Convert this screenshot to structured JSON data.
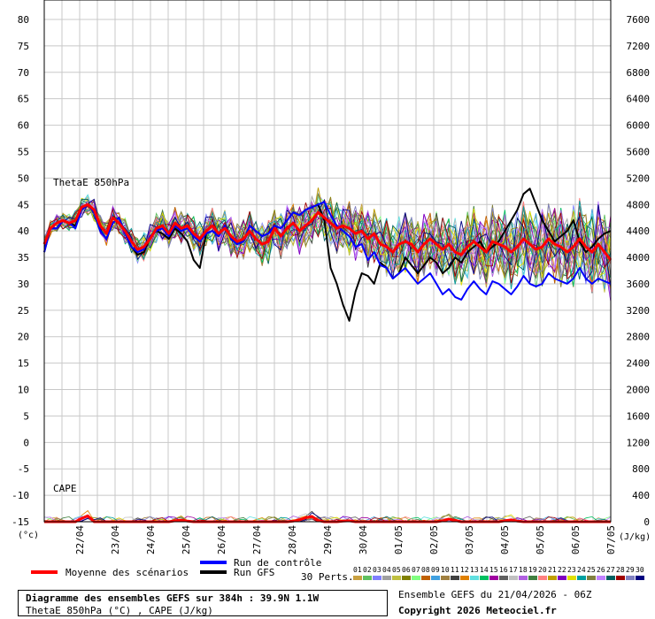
{
  "chart_data": {
    "type": "line",
    "title": "Diagramme des ensembles GEFS sur 384h : 39.9N 1.1W",
    "subtitle": "ThetaE 850hPa (°C) , CAPE (J/kg)",
    "left_axis": {
      "unit": "(°c)",
      "ticks": [
        "80",
        "75",
        "70",
        "65",
        "60",
        "55",
        "50",
        "45",
        "40",
        "35",
        "30",
        "25",
        "20",
        "15",
        "10",
        "5",
        "0",
        "-5",
        "-10",
        "-15"
      ],
      "ylim": [
        -15,
        80
      ]
    },
    "right_axis": {
      "unit": "(J/kg)",
      "ticks": [
        "7600",
        "7200",
        "6800",
        "6400",
        "6000",
        "5600",
        "5200",
        "4800",
        "4400",
        "4000",
        "3600",
        "3200",
        "2800",
        "2400",
        "2000",
        "1600",
        "1200",
        "800",
        "400",
        "0"
      ],
      "ylim": [
        0,
        7600
      ]
    },
    "x_ticks": [
      "22/04",
      "23/04",
      "24/04",
      "25/04",
      "26/04",
      "27/04",
      "28/04",
      "29/04",
      "30/04",
      "01/05",
      "02/05",
      "03/05",
      "04/05",
      "05/05",
      "06/05",
      "07/05"
    ],
    "panel_labels": {
      "thetae": "ThetaE 850hPa",
      "cape": "CAPE"
    },
    "thetae_mean": [
      37.5,
      40.5,
      41.5,
      42,
      41.5,
      42,
      44.5,
      45,
      44,
      41,
      39.5,
      42.5,
      41.5,
      40,
      38,
      36.5,
      37,
      38.5,
      40.5,
      41,
      39.5,
      41.5,
      40.5,
      41,
      39.5,
      38.5,
      40,
      41,
      39.5,
      40.5,
      39,
      38,
      38.5,
      40,
      38.5,
      37.5,
      38,
      40.5,
      39,
      40.5,
      41.5,
      40,
      41,
      42,
      43.5,
      42.5,
      41.5,
      40.5,
      41,
      40.5,
      39.5,
      40,
      38.5,
      39.5,
      37.5,
      37,
      36,
      37.5,
      38,
      37.5,
      36,
      37.5,
      38.5,
      37.5,
      36.5,
      37.5,
      36,
      35.5,
      37,
      38,
      37,
      36,
      38,
      37.5,
      37,
      36,
      37,
      38.5,
      37.5,
      36.5,
      37,
      38.5,
      37.5,
      37,
      36,
      37,
      38.5,
      37,
      36,
      37.5,
      36,
      34.5
    ],
    "thetae_control": [
      36,
      40.5,
      40.5,
      42,
      41.5,
      40.5,
      44,
      45,
      43.5,
      40,
      38.5,
      41.5,
      42.5,
      39.5,
      37,
      36,
      36.5,
      39,
      40,
      40.5,
      39,
      41,
      40,
      40.5,
      39,
      38,
      39.5,
      40,
      39,
      41,
      38.5,
      37.5,
      38,
      41,
      40,
      39,
      39.5,
      41,
      40.5,
      42,
      43.5,
      43,
      44,
      44.5,
      45,
      45.5,
      43,
      41,
      40,
      39,
      37,
      37.5,
      34.5,
      36,
      33.5,
      33,
      31,
      32,
      33,
      31.5,
      30,
      31,
      32,
      30,
      28,
      29,
      27.5,
      27,
      29,
      30.5,
      29,
      28,
      30.5,
      30,
      29,
      28,
      29.5,
      31.5,
      30,
      29.5,
      30,
      32,
      31,
      30.5,
      30,
      31,
      33,
      31,
      30,
      31,
      30.5,
      30
    ],
    "thetae_gfs": [
      36,
      40.5,
      40.5,
      42,
      41.5,
      41,
      44,
      45,
      43.5,
      40,
      38.5,
      41.5,
      42.5,
      39.5,
      37,
      35.5,
      36,
      39,
      40,
      39.5,
      38.5,
      40.5,
      39.5,
      38,
      34.5,
      33,
      39.5,
      40,
      39,
      41,
      38.5,
      37.5,
      38,
      41,
      40,
      39,
      39.5,
      41,
      40.5,
      42,
      43.5,
      43,
      44,
      44.5,
      45,
      42,
      33,
      30,
      26,
      23,
      28.5,
      32,
      31.5,
      30,
      34,
      33,
      31,
      32,
      35,
      33.5,
      32,
      33.5,
      35,
      34,
      32,
      33,
      35,
      34,
      36,
      37,
      38,
      36,
      37,
      38,
      40,
      42,
      44,
      47,
      48,
      45,
      42,
      40,
      38,
      39,
      40,
      42,
      38,
      36,
      37,
      38.5,
      39.5,
      40
    ],
    "cape_mean": [
      0,
      0,
      0,
      0,
      0,
      0,
      50,
      90,
      0,
      0,
      0,
      0,
      0,
      0,
      0,
      0,
      0,
      0,
      0,
      0,
      0,
      15,
      25,
      10,
      0,
      0,
      0,
      0,
      0,
      0,
      0,
      0,
      0,
      0,
      0,
      0,
      0,
      0,
      0,
      0,
      10,
      30,
      60,
      80,
      20,
      0,
      0,
      0,
      10,
      15,
      0,
      0,
      0,
      0,
      0,
      0,
      0,
      0,
      0,
      0,
      0,
      0,
      0,
      0,
      15,
      40,
      20,
      0,
      0,
      0,
      0,
      0,
      0,
      0,
      15,
      30,
      10,
      0,
      0,
      0,
      0,
      0,
      0,
      0,
      0,
      0,
      0,
      0,
      0,
      0,
      0,
      0
    ],
    "series_count_label": "30 Perts.",
    "members": [
      "01",
      "02",
      "03",
      "04",
      "05",
      "06",
      "07",
      "08",
      "09",
      "10",
      "11",
      "12",
      "13",
      "14",
      "15",
      "16",
      "17",
      "18",
      "19",
      "20",
      "21",
      "22",
      "23",
      "24",
      "25",
      "26",
      "27",
      "28",
      "29",
      "30"
    ],
    "member_colors": [
      "#c8a040",
      "#60c060",
      "#8080ff",
      "#a0a0a0",
      "#c0c040",
      "#808000",
      "#80ff80",
      "#c06000",
      "#40a0e0",
      "#a08040",
      "#404040",
      "#e08000",
      "#60e0e0",
      "#00c060",
      "#a000a0",
      "#606060",
      "#c0c0c0",
      "#b060e0",
      "#408040",
      "#ff8080",
      "#c0a000",
      "#8000c0",
      "#e0e000",
      "#00a0a0",
      "#808040",
      "#c080ff",
      "#006060",
      "#a00000",
      "#8080c0",
      "#000080"
    ],
    "legend": {
      "mean": "Moyenne des scénarios",
      "control": "Run de contrôle",
      "gfs": "Run GFS"
    },
    "colors": {
      "mean": "#ff0000",
      "control": "#0000ff",
      "gfs": "#000000"
    }
  },
  "footer": {
    "title": "Diagramme des ensembles GEFS sur 384h : 39.9N 1.1W",
    "subtitle": "ThetaE 850hPa (°C) , CAPE (J/kg)",
    "ensemble_run": "Ensemble GEFS du 21/04/2026 - 06Z",
    "copyright": "Copyright 2026 Meteociel.fr"
  }
}
